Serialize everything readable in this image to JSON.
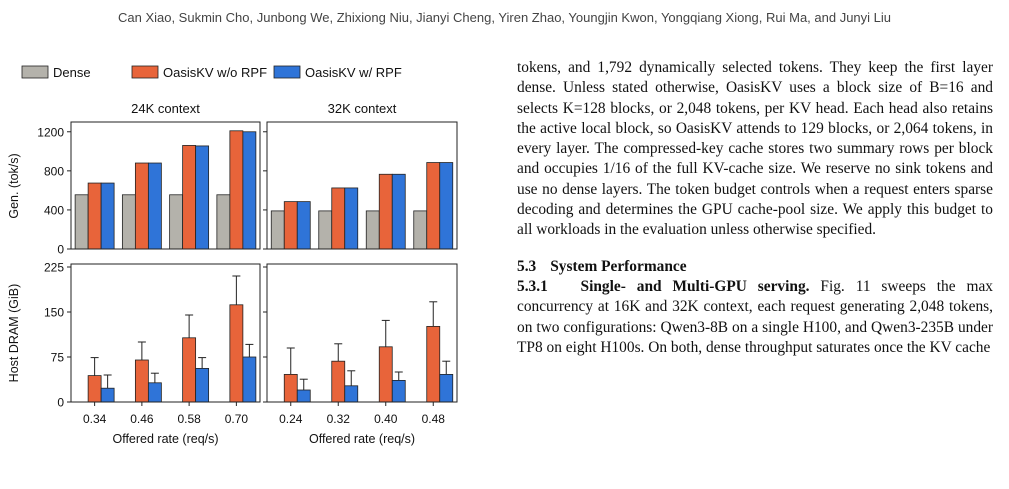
{
  "header": {
    "authors": "Can Xiao, Sukmin Cho, Junbong We, Zhixiong Niu, Jianyi Cheng, Yiren Zhao, Youngjin Kwon, Yongqiang Xiong, Rui Ma, and Junyi Liu"
  },
  "chart_data": {
    "type": "bar",
    "legend": [
      "Dense",
      "OasisKV w/o RPF",
      "OasisKV w/ RPF"
    ],
    "legend_placement": "top",
    "colors": {
      "dense": "#b4b2ab",
      "no_rpf": "#e8643a",
      "rpf": "#2f74d8"
    },
    "row_labels": [
      "Gen. (tok/s)",
      "Host DRAM (GiB)"
    ],
    "xlabel": "Offered rate (req/s)",
    "panels": [
      {
        "context": "24K context",
        "categories": [
          "0.34",
          "0.46",
          "0.58",
          "0.70"
        ],
        "gen": {
          "ylim": [
            0,
            1300
          ],
          "yticks": [
            "0",
            "400",
            "800",
            "1200"
          ],
          "ytick_values": [
            0,
            400,
            800,
            1200
          ],
          "series": [
            {
              "name": "Dense",
              "values": [
                555,
                555,
                555,
                555
              ]
            },
            {
              "name": "OasisKV w/o RPF",
              "values": [
                675,
                880,
                1060,
                1210
              ]
            },
            {
              "name": "OasisKV w/ RPF",
              "values": [
                675,
                880,
                1055,
                1200
              ]
            }
          ]
        },
        "dram": {
          "ylim": [
            0,
            230
          ],
          "yticks": [
            "0",
            "75",
            "150",
            "225"
          ],
          "ytick_values": [
            0,
            75,
            150,
            225
          ],
          "series": [
            {
              "name": "Dense",
              "values": [
                0,
                0,
                0,
                0
              ]
            },
            {
              "name": "OasisKV w/o RPF",
              "values": [
                44,
                70,
                107,
                162
              ],
              "err": [
                74,
                100,
                145,
                210
              ]
            },
            {
              "name": "OasisKV w/ RPF",
              "values": [
                23,
                32,
                56,
                75
              ],
              "err": [
                45,
                48,
                74,
                96
              ]
            }
          ]
        }
      },
      {
        "context": "32K context",
        "categories": [
          "0.24",
          "0.32",
          "0.40",
          "0.48"
        ],
        "gen": {
          "ylim": [
            0,
            1300
          ],
          "yticks": [
            "0",
            "400",
            "800",
            "1200"
          ],
          "ytick_values": [
            0,
            400,
            800,
            1200
          ],
          "series": [
            {
              "name": "Dense",
              "values": [
                390,
                390,
                390,
                390
              ]
            },
            {
              "name": "OasisKV w/o RPF",
              "values": [
                485,
                625,
                765,
                885
              ]
            },
            {
              "name": "OasisKV w/ RPF",
              "values": [
                485,
                625,
                765,
                885
              ]
            }
          ]
        },
        "dram": {
          "ylim": [
            0,
            230
          ],
          "yticks": [
            "0",
            "75",
            "150",
            "225"
          ],
          "ytick_values": [
            0,
            75,
            150,
            225
          ],
          "series": [
            {
              "name": "Dense",
              "values": [
                0,
                0,
                0,
                0
              ]
            },
            {
              "name": "OasisKV w/o RPF",
              "values": [
                46,
                68,
                92,
                126
              ],
              "err": [
                90,
                97,
                136,
                167
              ]
            },
            {
              "name": "OasisKV w/ RPF",
              "values": [
                20,
                27,
                36,
                46
              ],
              "err": [
                38,
                52,
                50,
                68
              ]
            }
          ]
        }
      }
    ]
  },
  "body": {
    "para1": "tokens, and 1,792 dynamically selected tokens. They keep the first layer dense. Unless stated otherwise, OasisKV uses a block size of B=16 and selects K=128 blocks, or 2,048 tokens, per KV head. Each head also retains the active local block, so OasisKV attends to 129 blocks, or 2,064 tokens, in every layer. The compressed-key cache stores two summary rows per block and occupies 1/16 of the full KV-cache size. We reserve no sink tokens and use no dense layers. The token budget controls when a request enters sparse decoding and determines the GPU cache-pool size. We apply this budget to all workloads in the evaluation unless otherwise specified.",
    "section_number": "5.3",
    "section_title": "System Performance",
    "subsection_number": "5.3.1",
    "subsection_title": "Single- and Multi-GPU serving.",
    "para2": "Fig. 11 sweeps the max concurrency at 16K and 32K context, each request generating 2,048 tokens, on two configurations: Qwen3-8B on a single H100, and Qwen3-235B under TP8 on eight H100s. On both, dense throughput saturates once the KV cache"
  }
}
